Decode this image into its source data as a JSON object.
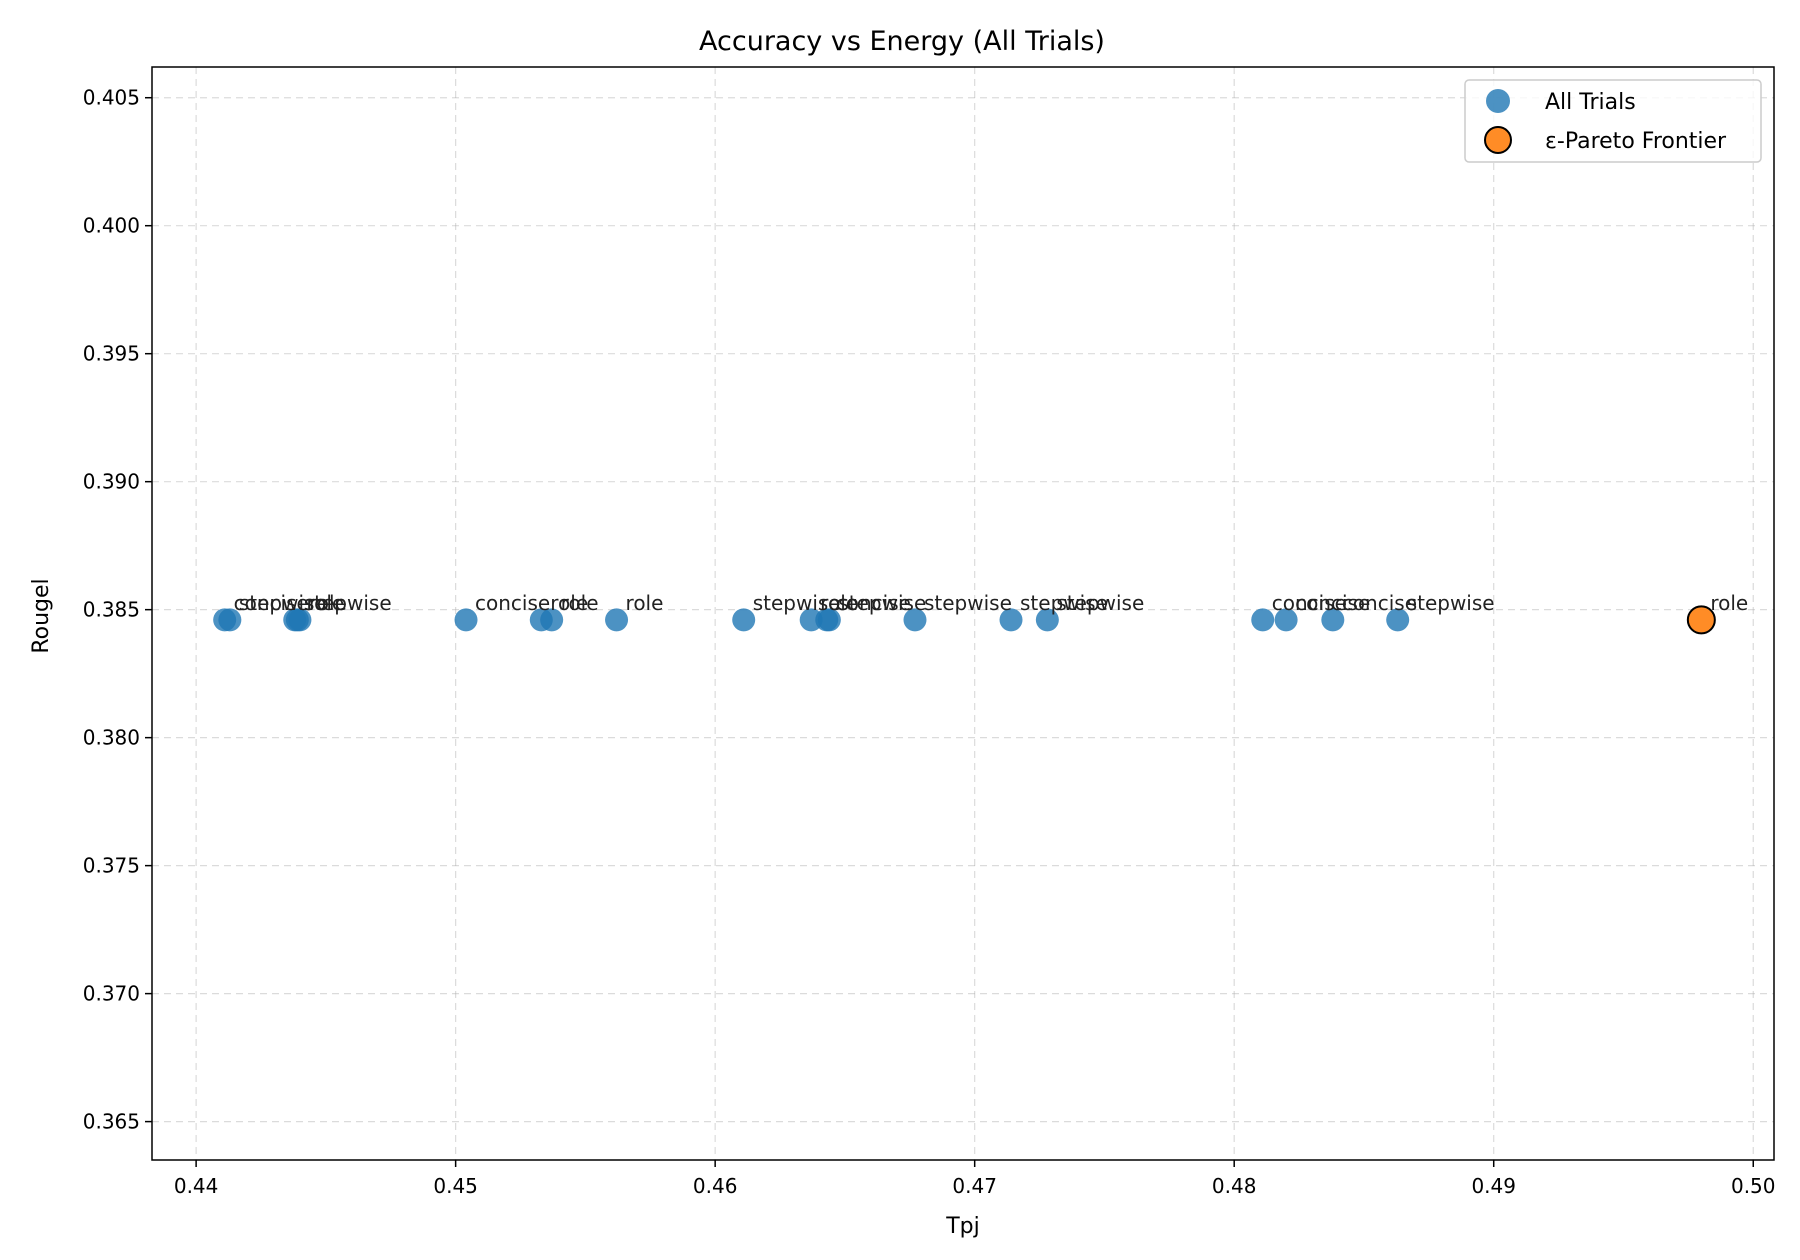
{
  "chart_data": {
    "type": "scatter",
    "title": "Accuracy vs Energy (All Trials)",
    "xlabel": "Tpj",
    "ylabel": "Rougel",
    "xlim": [
      0.4383,
      0.5008
    ],
    "ylim": [
      0.3635,
      0.4062
    ],
    "xticks": [
      "0.44",
      "0.45",
      "0.46",
      "0.47",
      "0.48",
      "0.49",
      "0.50"
    ],
    "yticks": [
      "0.365",
      "0.370",
      "0.375",
      "0.380",
      "0.385",
      "0.390",
      "0.395",
      "0.400",
      "0.405"
    ],
    "grid": true,
    "legend_position": "top-right",
    "series": [
      {
        "name": "All Trials",
        "color": "#1f77b4",
        "points": [
          {
            "x": 0.4411,
            "y": 0.3846,
            "label": "concise"
          },
          {
            "x": 0.4413,
            "y": 0.3846,
            "label": "stepwise"
          },
          {
            "x": 0.4438,
            "y": 0.3846,
            "label": "stepwise"
          },
          {
            "x": 0.4439,
            "y": 0.3846,
            "label": "role"
          },
          {
            "x": 0.444,
            "y": 0.3846,
            "label": "role"
          },
          {
            "x": 0.4504,
            "y": 0.3846,
            "label": "concise"
          },
          {
            "x": 0.4533,
            "y": 0.3846,
            "label": "role"
          },
          {
            "x": 0.4537,
            "y": 0.3846,
            "label": "role"
          },
          {
            "x": 0.4562,
            "y": 0.3846,
            "label": "role"
          },
          {
            "x": 0.4611,
            "y": 0.3846,
            "label": "stepwise"
          },
          {
            "x": 0.4637,
            "y": 0.3846,
            "label": "role"
          },
          {
            "x": 0.4643,
            "y": 0.3846,
            "label": "concise"
          },
          {
            "x": 0.4644,
            "y": 0.3846,
            "label": "stepwise"
          },
          {
            "x": 0.4677,
            "y": 0.3846,
            "label": "stepwise"
          },
          {
            "x": 0.4714,
            "y": 0.3846,
            "label": "stepwise"
          },
          {
            "x": 0.4728,
            "y": 0.3846,
            "label": "stepwise"
          },
          {
            "x": 0.4811,
            "y": 0.3846,
            "label": "concise"
          },
          {
            "x": 0.482,
            "y": 0.3846,
            "label": "concise"
          },
          {
            "x": 0.4838,
            "y": 0.3846,
            "label": "concise"
          },
          {
            "x": 0.4863,
            "y": 0.3846,
            "label": "stepwise"
          }
        ]
      },
      {
        "name": "ε-Pareto Frontier",
        "color": "#ff7f0e",
        "edge_color": "#000000",
        "points": [
          {
            "x": 0.498,
            "y": 0.3846,
            "label": "role"
          }
        ]
      }
    ]
  }
}
